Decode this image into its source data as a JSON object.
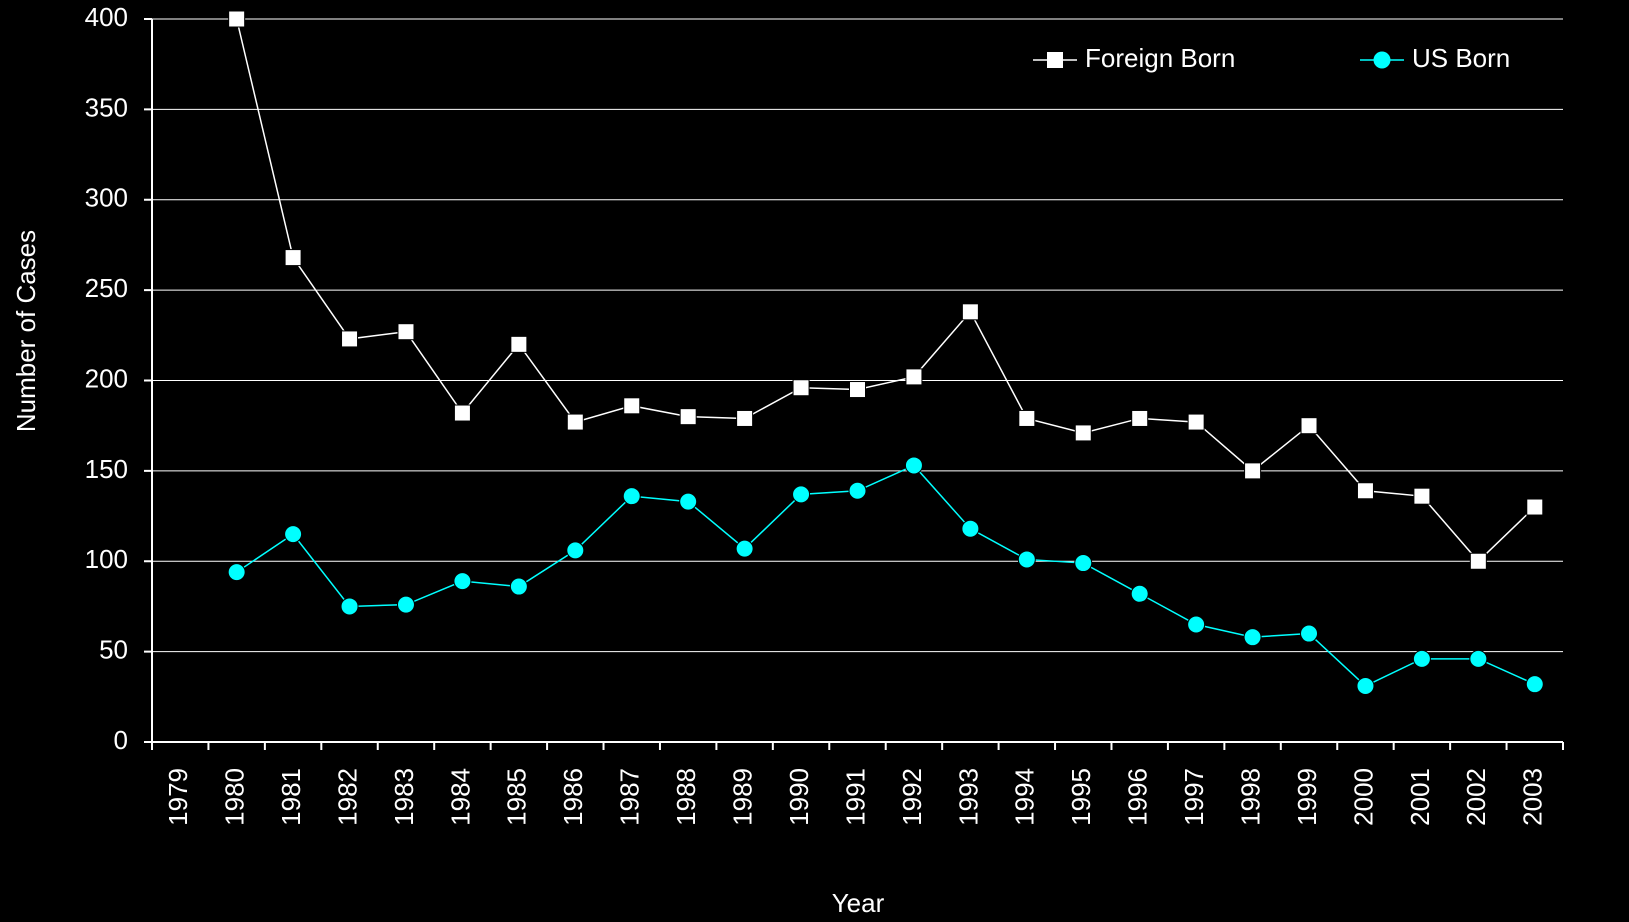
{
  "chart_data": {
    "type": "line",
    "x_label": "Year",
    "y_label": "Number of Cases",
    "categories": [
      "1979",
      "1980",
      "1981",
      "1982",
      "1983",
      "1984",
      "1985",
      "1986",
      "1987",
      "1988",
      "1989",
      "1990",
      "1991",
      "1992",
      "1993",
      "1994",
      "1995",
      "1996",
      "1997",
      "1998",
      "1999",
      "2000",
      "2001",
      "2002",
      "2003"
    ],
    "series": [
      {
        "name": "Foreign Born",
        "color": "#ffffff",
        "marker": "square",
        "values": [
          null,
          400,
          268,
          223,
          227,
          182,
          220,
          177,
          186,
          180,
          179,
          196,
          195,
          202,
          238,
          179,
          171,
          179,
          177,
          150,
          175,
          139,
          136,
          100,
          130
        ]
      },
      {
        "name": "US Born",
        "color": "#00ffff",
        "marker": "circle",
        "values": [
          null,
          94,
          115,
          75,
          76,
          89,
          86,
          106,
          136,
          133,
          107,
          137,
          139,
          153,
          118,
          101,
          99,
          82,
          65,
          58,
          60,
          31,
          46,
          46,
          32
        ]
      }
    ],
    "ylim": [
      0,
      400
    ],
    "yticks": [
      0,
      50,
      100,
      150,
      200,
      250,
      300,
      350,
      400
    ],
    "grid": true,
    "legend": "top-right"
  }
}
